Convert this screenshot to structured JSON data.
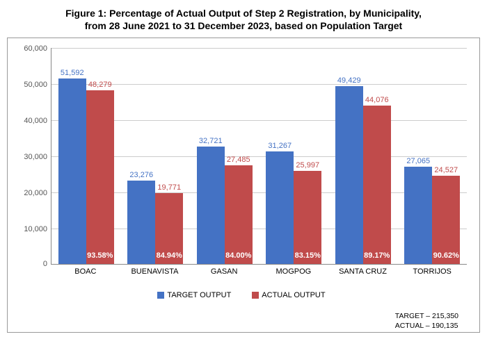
{
  "title_line1": "Figure 1: Percentage of Actual Output of Step 2 Registration, by Municipality,",
  "title_line2": "from 28 June 2021 to 31 December 2023, based on Population Target",
  "chart": {
    "type": "bar",
    "y_max": 60000,
    "y_step": 10000,
    "y_ticks": [
      "0",
      "10,000",
      "20,000",
      "30,000",
      "40,000",
      "50,000",
      "60,000"
    ],
    "series": [
      {
        "name": "TARGET OUTPUT",
        "color": "#4472c4"
      },
      {
        "name": "ACTUAL OUTPUT",
        "color": "#c04b4b"
      }
    ],
    "categories": [
      {
        "label": "BOAC",
        "target": 51592,
        "target_label": "51,592",
        "actual": 48279,
        "actual_label": "48,279",
        "pct": "93.58%"
      },
      {
        "label": "BUENAVISTA",
        "target": 23276,
        "target_label": "23,276",
        "actual": 19771,
        "actual_label": "19,771",
        "pct": "84.94%"
      },
      {
        "label": "GASAN",
        "target": 32721,
        "target_label": "32,721",
        "actual": 27485,
        "actual_label": "27,485",
        "pct": "84.00%"
      },
      {
        "label": "MOGPOG",
        "target": 31267,
        "target_label": "31,267",
        "actual": 25997,
        "actual_label": "25,997",
        "pct": "83.15%"
      },
      {
        "label": "SANTA CRUZ",
        "target": 49429,
        "target_label": "49,429",
        "actual": 44076,
        "actual_label": "44,076",
        "pct": "89.17%"
      },
      {
        "label": "TORRIJOS",
        "target": 27065,
        "target_label": "27,065",
        "actual": 24527,
        "actual_label": "24,527",
        "pct": "90.62%"
      }
    ],
    "totals_target": "TARGET – 215,350",
    "totals_actual": "ACTUAL – 190,135"
  }
}
